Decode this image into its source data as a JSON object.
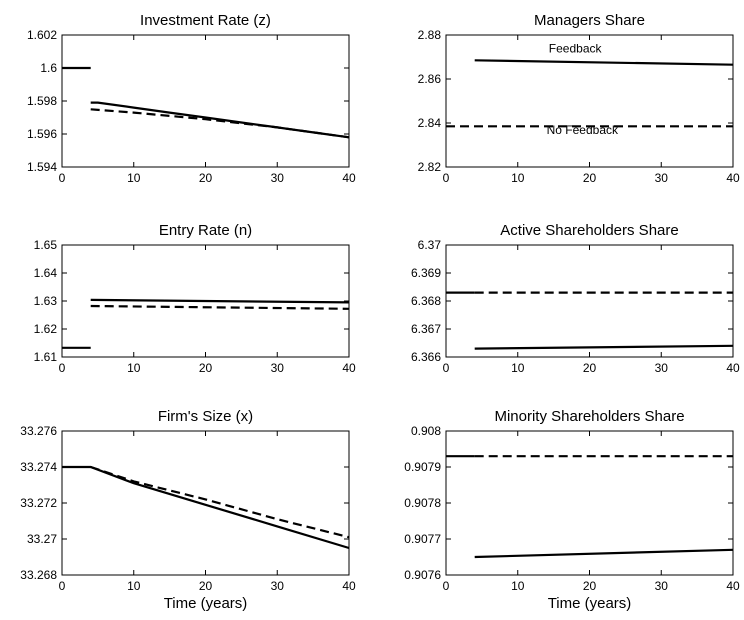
{
  "chart_data": [
    {
      "type": "line",
      "title": "Investment Rate (z)",
      "xlabel": "",
      "xlim": [
        0,
        40
      ],
      "ylim": [
        1.594,
        1.602
      ],
      "xticks": [
        "0",
        "10",
        "20",
        "30",
        "40"
      ],
      "yticks": [
        "1.594",
        "1.596",
        "1.598",
        "1.6",
        "1.602"
      ],
      "series": [
        {
          "style": "solid",
          "segments": [
            {
              "x": [
                0,
                4
              ],
              "y": [
                1.6,
                1.6
              ]
            },
            {
              "x": [
                4,
                5,
                10,
                15,
                20,
                25,
                30,
                35,
                40
              ],
              "y": [
                1.5979,
                1.5979,
                1.5976,
                1.5973,
                1.597,
                1.5967,
                1.5964,
                1.5961,
                1.5958
              ]
            }
          ]
        },
        {
          "style": "dashed",
          "segments": [
            {
              "x": [
                4,
                10,
                20,
                30,
                40
              ],
              "y": [
                1.5975,
                1.5973,
                1.5969,
                1.5964,
                1.5958
              ]
            }
          ]
        }
      ]
    },
    {
      "type": "line",
      "title": "Managers Share",
      "xlabel": "",
      "xlim": [
        0,
        40
      ],
      "ylim": [
        2.82,
        2.88
      ],
      "xticks": [
        "0",
        "10",
        "20",
        "30",
        "40"
      ],
      "yticks": [
        "2.82",
        "2.84",
        "2.86",
        "2.88"
      ],
      "annotations": [
        {
          "text": "Feedback",
          "x": 18,
          "y": 2.872
        },
        {
          "text": "No Feedback",
          "x": 19,
          "y": 2.835
        }
      ],
      "series": [
        {
          "style": "solid",
          "segments": [
            {
              "x": [
                4,
                40
              ],
              "y": [
                2.8685,
                2.8665
              ]
            }
          ]
        },
        {
          "style": "dashed",
          "segments": [
            {
              "x": [
                0,
                40
              ],
              "y": [
                2.8385,
                2.8385
              ]
            }
          ]
        }
      ]
    },
    {
      "type": "line",
      "title": "Entry Rate (n)",
      "xlabel": "",
      "xlim": [
        0,
        40
      ],
      "ylim": [
        1.61,
        1.65
      ],
      "xticks": [
        "0",
        "10",
        "20",
        "30",
        "40"
      ],
      "yticks": [
        "1.61",
        "1.62",
        "1.63",
        "1.64",
        "1.65"
      ],
      "series": [
        {
          "style": "solid",
          "segments": [
            {
              "x": [
                0,
                4
              ],
              "y": [
                1.6133,
                1.6133
              ]
            },
            {
              "x": [
                4,
                40
              ],
              "y": [
                1.6304,
                1.6295
              ]
            }
          ]
        },
        {
          "style": "dashed",
          "segments": [
            {
              "x": [
                4,
                40
              ],
              "y": [
                1.6282,
                1.6272
              ]
            }
          ]
        }
      ]
    },
    {
      "type": "line",
      "title": "Active Shareholders Share",
      "xlabel": "",
      "xlim": [
        0,
        40
      ],
      "ylim": [
        6.366,
        6.37
      ],
      "xticks": [
        "0",
        "10",
        "20",
        "30",
        "40"
      ],
      "yticks": [
        "6.366",
        "6.367",
        "6.368",
        "6.369",
        "6.37"
      ],
      "series": [
        {
          "style": "solid",
          "segments": [
            {
              "x": [
                0,
                4
              ],
              "y": [
                6.3683,
                6.3683
              ]
            },
            {
              "x": [
                4,
                40
              ],
              "y": [
                6.3663,
                6.3664
              ]
            }
          ]
        },
        {
          "style": "dashed",
          "segments": [
            {
              "x": [
                4,
                40
              ],
              "y": [
                6.3683,
                6.3683
              ]
            }
          ]
        }
      ]
    },
    {
      "type": "line",
      "title": "Firm's Size (x)",
      "xlabel": "Time (years)",
      "xlim": [
        0,
        40
      ],
      "ylim": [
        33.268,
        33.276
      ],
      "xticks": [
        "0",
        "10",
        "20",
        "30",
        "40"
      ],
      "yticks": [
        "33.268",
        "33.27",
        "33.272",
        "33.274",
        "33.276"
      ],
      "series": [
        {
          "style": "solid",
          "segments": [
            {
              "x": [
                0,
                4,
                10,
                20,
                30,
                40
              ],
              "y": [
                33.274,
                33.274,
                33.2731,
                33.2719,
                33.2707,
                33.2695
              ]
            }
          ]
        },
        {
          "style": "dashed",
          "segments": [
            {
              "x": [
                4,
                10,
                20,
                30,
                40
              ],
              "y": [
                33.274,
                33.2732,
                33.2722,
                33.2711,
                33.2701
              ]
            }
          ]
        }
      ]
    },
    {
      "type": "line",
      "title": "Minority Shareholders Share",
      "xlabel": "Time (years)",
      "xlim": [
        0,
        40
      ],
      "ylim": [
        0.9076,
        0.908
      ],
      "xticks": [
        "0",
        "10",
        "20",
        "30",
        "40"
      ],
      "yticks": [
        "0.9076",
        "0.9077",
        "0.9078",
        "0.9079",
        "0.908"
      ],
      "series": [
        {
          "style": "solid",
          "segments": [
            {
              "x": [
                0,
                4
              ],
              "y": [
                0.90793,
                0.90793
              ]
            },
            {
              "x": [
                4,
                40
              ],
              "y": [
                0.90765,
                0.90767
              ]
            }
          ]
        },
        {
          "style": "dashed",
          "segments": [
            {
              "x": [
                4,
                40
              ],
              "y": [
                0.90793,
                0.90793
              ]
            }
          ]
        }
      ]
    }
  ]
}
